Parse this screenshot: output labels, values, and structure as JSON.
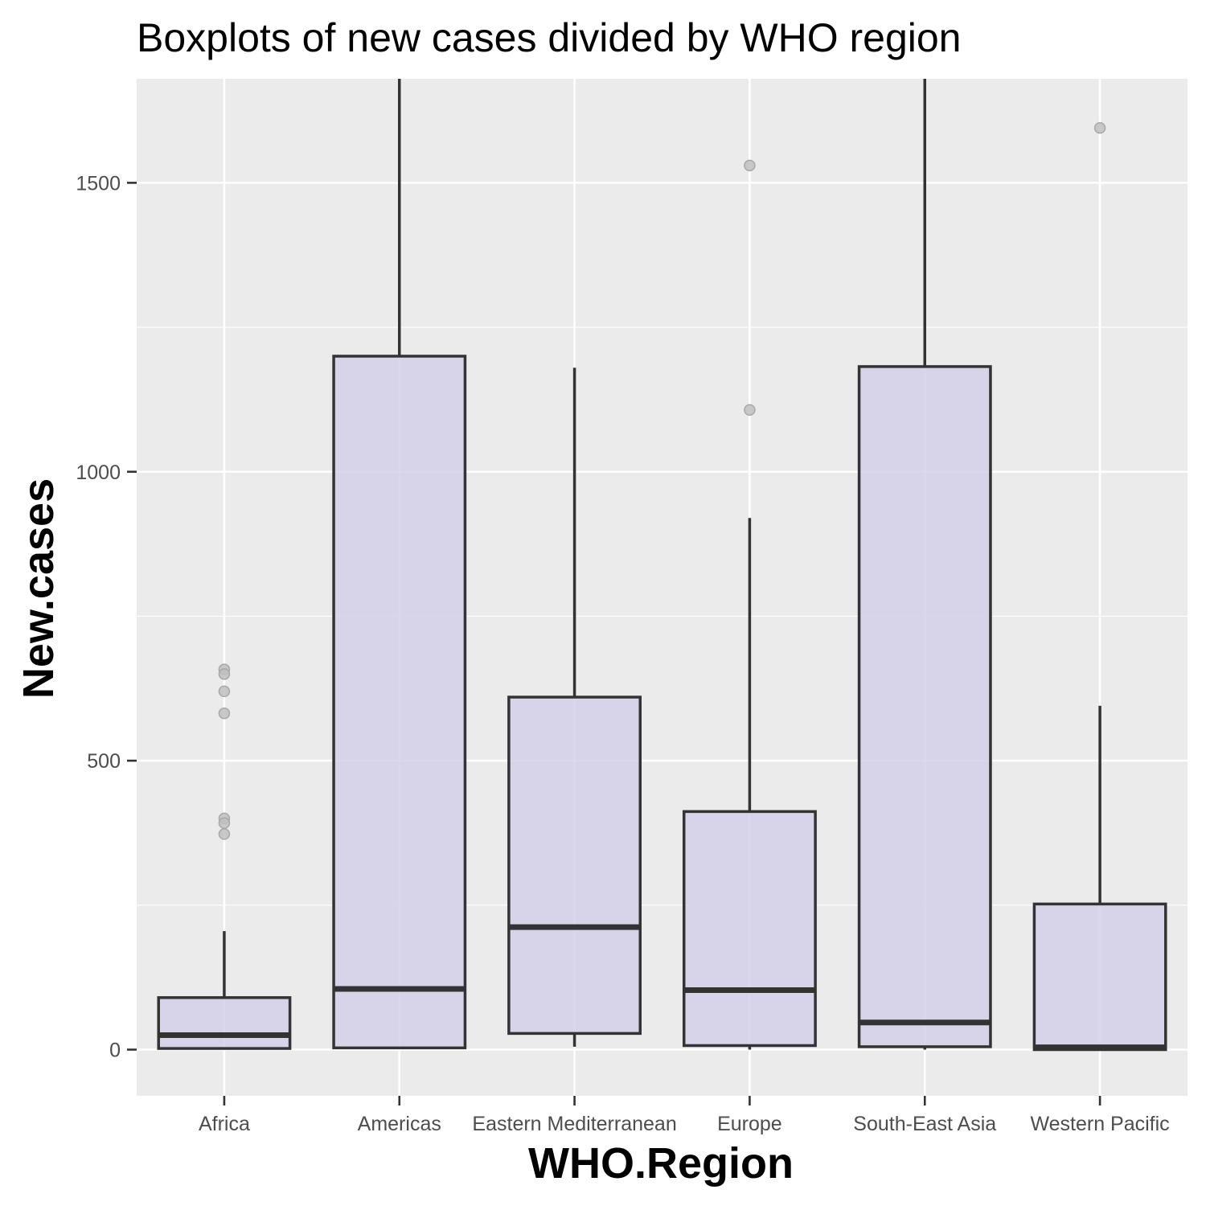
{
  "chart_data": {
    "type": "boxplot",
    "title": "Boxplots of new cases divided by WHO region",
    "xlabel": "WHO.Region",
    "ylabel": "New.cases",
    "ylim": [
      -80,
      1680
    ],
    "yticks": [
      0,
      500,
      1000,
      1500
    ],
    "grid": true,
    "legend": "none",
    "colors": {
      "panel": "#ebebeb",
      "grid": "#ffffff",
      "box_fill": "#d3cfe7",
      "box_line": "#333333",
      "outlier": "#bfbfbf"
    },
    "categories": [
      "Africa",
      "Americas",
      "Eastern Mediterranean",
      "Europe",
      "South-East Asia",
      "Western Pacific"
    ],
    "boxes": [
      {
        "category": "Africa",
        "min": 0,
        "q1": 2,
        "median": 25,
        "q3": 90,
        "max": 205,
        "outliers": [
          658,
          650,
          620,
          582,
          400,
          392,
          373
        ]
      },
      {
        "category": "Americas",
        "min": 1,
        "q1": 3,
        "median": 105,
        "q3": 1200,
        "max": 1680,
        "outliers": []
      },
      {
        "category": "Eastern Mediterranean",
        "min": 5,
        "q1": 28,
        "median": 212,
        "q3": 610,
        "max": 1180,
        "outliers": []
      },
      {
        "category": "Europe",
        "min": 0,
        "q1": 7,
        "median": 103,
        "q3": 412,
        "max": 920,
        "outliers": [
          1530,
          1107
        ]
      },
      {
        "category": "South-East Asia",
        "min": 0,
        "q1": 5,
        "median": 47,
        "q3": 1182,
        "max": 1680,
        "outliers": []
      },
      {
        "category": "Western Pacific",
        "min": 0,
        "q1": 0,
        "median": 4,
        "q3": 252,
        "max": 595,
        "outliers": [
          1595
        ]
      }
    ]
  }
}
